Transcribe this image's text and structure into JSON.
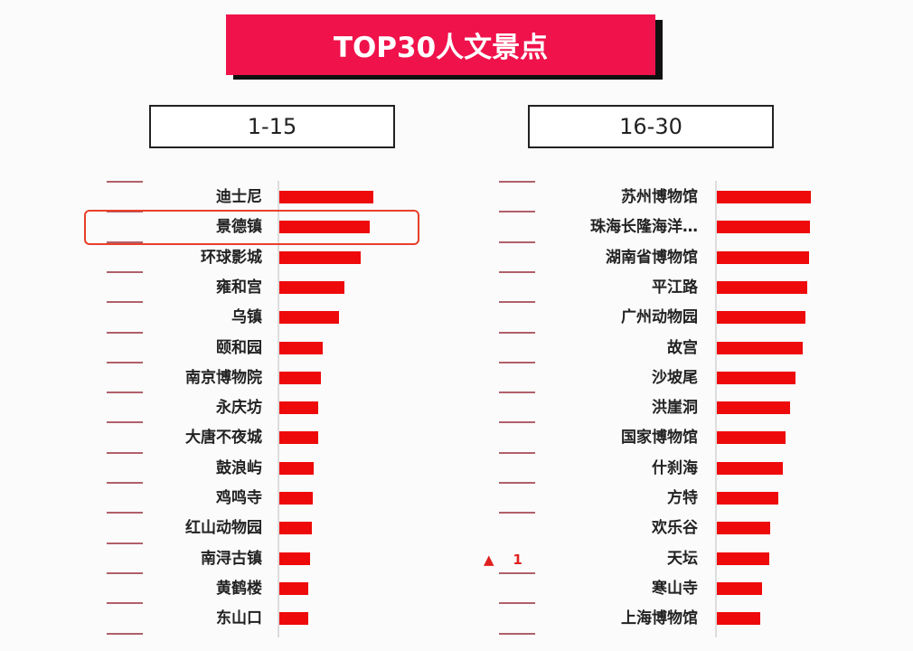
{
  "title": "TOP30人文景点",
  "colors": {
    "banner": "#f0124b",
    "bar": "#ee0a0a",
    "highlight": "#e8402a"
  },
  "chart_data": [
    {
      "type": "bar",
      "orientation": "horizontal",
      "group_label": "1-15",
      "categories": [
        "迪士尼",
        "景德镇",
        "环球影城",
        "雍和宫",
        "乌镇",
        "颐和园",
        "南京博物院",
        "永庆坊",
        "大唐不夜城",
        "鼓浪屿",
        "鸡鸣寺",
        "红山动物园",
        "南浔古镇",
        "黄鹤楼",
        "东山口"
      ],
      "values": [
        104,
        100,
        90,
        72,
        66,
        48,
        46,
        43,
        43,
        38,
        37,
        36,
        34,
        32,
        32
      ],
      "rank_change": [
        "—",
        "—",
        "—",
        "—",
        "—",
        "—",
        "—",
        "—",
        "—",
        "—",
        "—",
        "—",
        "—",
        "—",
        "—"
      ],
      "highlighted": "景德镇",
      "grid": false
    },
    {
      "type": "bar",
      "orientation": "horizontal",
      "group_label": "16-30",
      "categories": [
        "苏州博物馆",
        "珠海长隆海洋…",
        "湖南省博物馆",
        "平江路",
        "广州动物园",
        "故宫",
        "沙坡尾",
        "洪崖洞",
        "国家博物馆",
        "什刹海",
        "方特",
        "欢乐谷",
        "天坛",
        "寒山寺",
        "上海博物馆"
      ],
      "values": [
        104,
        103,
        102,
        100,
        98,
        95,
        87,
        81,
        76,
        73,
        68,
        59,
        58,
        50,
        48
      ],
      "rank_change": [
        "—",
        "—",
        "—",
        "—",
        "—",
        "—",
        "—",
        "—",
        "—",
        "—",
        "—",
        "—",
        "▲ 1",
        "—",
        "—"
      ],
      "grid": false
    }
  ]
}
